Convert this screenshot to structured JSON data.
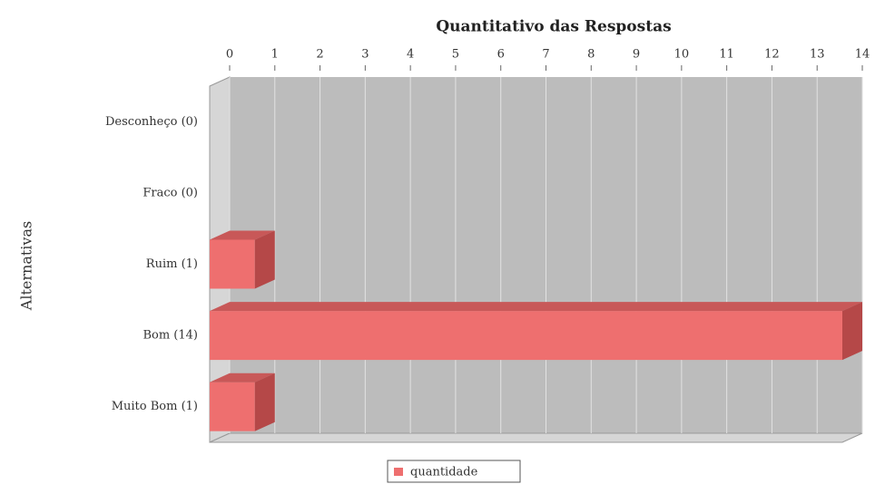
{
  "chart_data": {
    "type": "bar3d_horizontal",
    "title": "Quantitativo das Respostas",
    "y_label": "Alternativas",
    "categories": [
      "Desconheço (0)",
      "Fraco (0)",
      "Ruim (1)",
      "Bom (14)",
      "Muito Bom (1)"
    ],
    "series": [
      {
        "name": "quantidade",
        "color": "#ee6f6f",
        "values": [
          0,
          0,
          1,
          14,
          1
        ]
      }
    ],
    "xlim": [
      0,
      14
    ],
    "xticks": [
      0,
      1,
      2,
      3,
      4,
      5,
      6,
      7,
      8,
      9,
      10,
      11,
      12,
      13,
      14
    ],
    "grid": true,
    "legend": "bottom"
  }
}
